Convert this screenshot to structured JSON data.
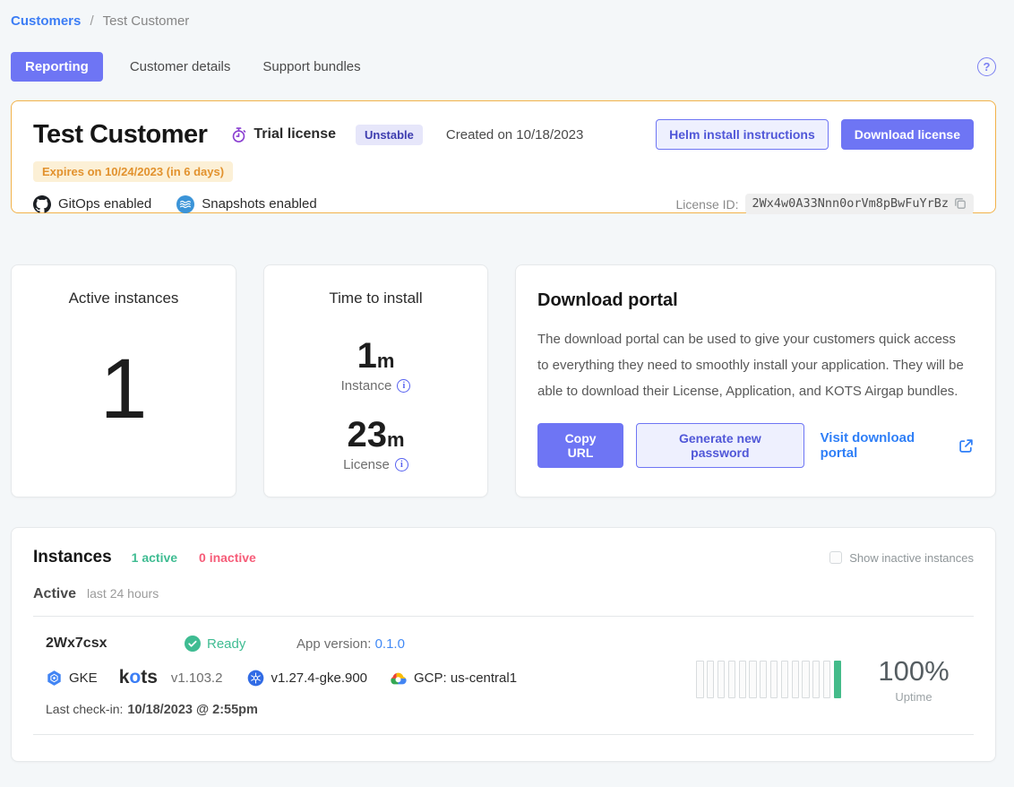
{
  "breadcrumb": {
    "link": "Customers",
    "separator": "/",
    "current": "Test Customer"
  },
  "tabs": [
    {
      "label": "Reporting",
      "active": true
    },
    {
      "label": "Customer details",
      "active": false
    },
    {
      "label": "Support bundles",
      "active": false
    }
  ],
  "help": {
    "glyph": "?"
  },
  "customer_card": {
    "title": "Test Customer",
    "license_type": "Trial license",
    "channel_badge": "Unstable",
    "created": "Created on 10/18/2023",
    "expires": "Expires on 10/24/2023 (in 6 days)",
    "helm_button": "Helm install instructions",
    "download_button": "Download license",
    "gitops_label": "GitOps enabled",
    "snapshots_label": "Snapshots enabled",
    "license_id_label": "License ID:",
    "license_id": "2Wx4w0A33Nnn0orVm8pBwFuYrBz"
  },
  "metrics": {
    "active_instances": {
      "title": "Active instances",
      "value": "1"
    },
    "time_to_install": {
      "title": "Time to install",
      "instance_value": "1",
      "instance_unit": "m",
      "instance_label": "Instance",
      "license_value": "23",
      "license_unit": "m",
      "license_label": "License",
      "info_glyph": "i"
    }
  },
  "download_portal": {
    "title": "Download portal",
    "description": "The download portal can be used to give your customers quick access to everything they need to smoothly install your application. They will be able to download their License, Application, and KOTS Airgap bundles.",
    "copy_url_button": "Copy URL",
    "generate_password_button": "Generate new password",
    "visit_link": "Visit download portal"
  },
  "instances": {
    "title": "Instances",
    "active_count": "1 active",
    "inactive_count": "0 inactive",
    "show_inactive_label": "Show inactive instances",
    "section_label": "Active",
    "section_range": "last 24 hours",
    "row": {
      "id": "2Wx7csx",
      "status": "Ready",
      "app_version_label": "App version:",
      "app_version": "0.1.0",
      "distribution": "GKE",
      "kots_logo": [
        "k",
        "o",
        "ts"
      ],
      "kots_version": "v1.103.2",
      "k8s_version": "v1.27.4-gke.900",
      "cloud_region": "GCP: us-central1",
      "last_checkin_label": "Last check-in:",
      "last_checkin": "10/18/2023 @ 2:55pm",
      "uptime_value": "100%",
      "uptime_label": "Uptime",
      "uptime_bars": {
        "total": 14,
        "green_index": 13
      }
    }
  },
  "colors": {
    "primary_indigo": "#6e75f4",
    "warning_border": "#f2b24a",
    "expires_text": "#e2922e",
    "success_green": "#3fbc92",
    "uptime_green": "#44bb8a",
    "inactive_pink": "#f65c78",
    "link_blue": "#428af5"
  }
}
